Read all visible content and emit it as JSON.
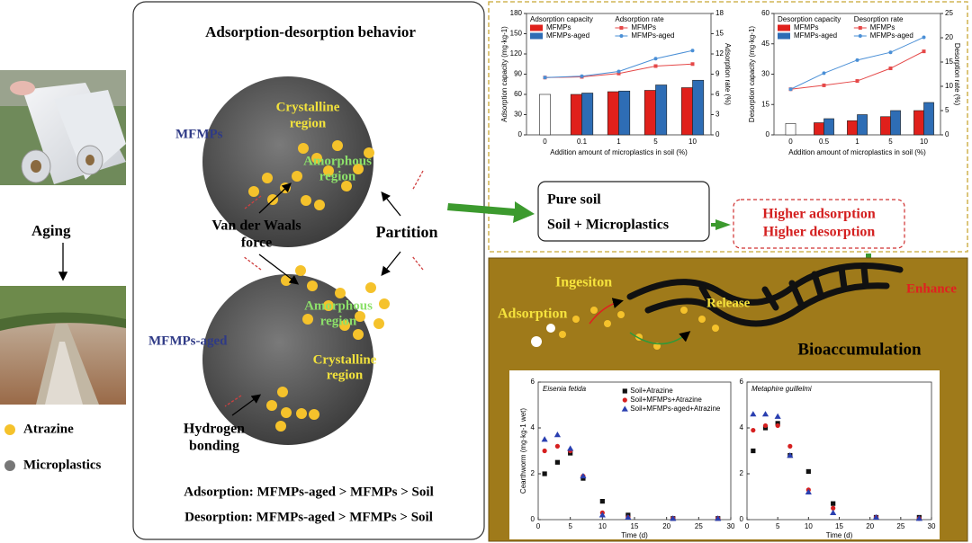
{
  "left": {
    "aging": "Aging",
    "legend": [
      "Atrazine",
      "Microplastics"
    ]
  },
  "center": {
    "title": "Adsorption-desorption behavior",
    "mfmps": "MFMPs",
    "mfmps_aged": "MFMPs-aged",
    "top_crystalline": [
      "Crystalline",
      "region"
    ],
    "top_amorphous": [
      "Amorphous",
      "region"
    ],
    "bottom_amorphous": [
      "Amorphous",
      "region"
    ],
    "bottom_crystalline": [
      "Crystalline",
      "region"
    ],
    "van_der_waals": [
      "Van der Waals",
      "force"
    ],
    "partition": "Partition",
    "hydrogen_bonding": [
      "Hydrogen",
      "bonding"
    ],
    "adsorption_order": "Adsorption: MFMPs-aged > MFMPs > Soil",
    "desorption_order": "Desorption: MFMPs-aged > MFMPs > Soil"
  },
  "boxes": {
    "pure_soil": "Pure soil",
    "soil_microplastics": "Soil  + Microplastics",
    "higher": [
      "Higher adsorption",
      "Higher desorption"
    ]
  },
  "bioaccumulation": {
    "ingestion": "Ingesiton",
    "adsorption": "Adsorption",
    "release": "Release",
    "enhance": "Enhance",
    "title": "Bioaccumulation"
  },
  "charts": [
    {
      "type": "bar-line",
      "categories": [
        "0",
        "0.1",
        "1",
        "5",
        "10"
      ],
      "legend_titles": [
        "Adsorption capacity",
        "Adsorption rate"
      ],
      "xlabel": "Addition amount of microplastics in soil (%)",
      "ylabel": "Adsorption capacity (mg·kg-1)",
      "y2label": "Adsorption rate (%)",
      "ylim": [
        0,
        180
      ],
      "yticks": [
        0,
        30,
        60,
        90,
        120,
        150,
        180
      ],
      "y2lim": [
        0,
        18
      ],
      "y2ticks": [
        0,
        3,
        6,
        9,
        12,
        15,
        18
      ],
      "series": [
        {
          "color": "#ffffff",
          "values": [
            60,
            null,
            null,
            null,
            null
          ]
        },
        {
          "name": "MFMPs",
          "color": "#e0201b",
          "values": [
            null,
            60,
            64,
            66,
            70
          ]
        },
        {
          "name": "MFMPs-aged",
          "color": "#2e6db5",
          "values": [
            null,
            62,
            65,
            74,
            81
          ]
        },
        {
          "name": "MFMPs",
          "color": "#e54848",
          "axis": "y2",
          "values": [
            8.5,
            8.6,
            9.1,
            10.2,
            10.5
          ]
        },
        {
          "name": "MFMPs-aged",
          "color": "#4a8fd6",
          "axis": "y2",
          "values": [
            8.5,
            8.7,
            9.4,
            11.3,
            12.5
          ]
        }
      ]
    },
    {
      "type": "bar-line",
      "categories": [
        "0",
        "0.5",
        "1",
        "5",
        "10"
      ],
      "legend_titles": [
        "Desorption capacity",
        "Desorption rate"
      ],
      "xlabel": "Addition amount of microplastics in soil (%)",
      "ylabel": "Desorption capacity (mg·kg-1)",
      "y2label": "Desorption rate (%)",
      "ylim": [
        0,
        60
      ],
      "yticks": [
        0,
        15,
        30,
        45,
        60
      ],
      "y2lim": [
        0,
        25
      ],
      "y2ticks": [
        0,
        5,
        10,
        15,
        20,
        25
      ],
      "series": [
        {
          "color": "#ffffff",
          "values": [
            5.6,
            null,
            null,
            null,
            null
          ]
        },
        {
          "name": "MFMPs",
          "color": "#e0201b",
          "values": [
            null,
            6,
            7,
            9,
            12
          ]
        },
        {
          "name": "MFMPs-aged",
          "color": "#2e6db5",
          "values": [
            null,
            8,
            10,
            12,
            16
          ]
        },
        {
          "name": "MFMPs",
          "color": "#e54848",
          "axis": "y2",
          "values": [
            9.4,
            10.2,
            11.1,
            13.7,
            17.2
          ]
        },
        {
          "name": "MFMPs-aged",
          "color": "#4a8fd6",
          "axis": "y2",
          "values": [
            9.4,
            12.7,
            15.4,
            17,
            20.1
          ]
        }
      ]
    },
    {
      "type": "scatter",
      "title": "Eisenia fetida",
      "xlabel": "Time (d)",
      "ylabel": "Cearthworm (mg·kg-1 wet)",
      "x": [
        1,
        3,
        5,
        7,
        10,
        14,
        21,
        28
      ],
      "xlim": [
        0,
        30
      ],
      "xticks": [
        0,
        5,
        10,
        15,
        20,
        25,
        30
      ],
      "ylim": [
        0,
        6
      ],
      "yticks": [
        0,
        2,
        4,
        6
      ],
      "series": [
        {
          "name": "Soil+Atrazine",
          "color": "#111111",
          "marker": "square",
          "values": [
            2.0,
            2.5,
            2.9,
            1.8,
            0.8,
            0.2,
            0.05,
            0.05
          ]
        },
        {
          "name": "Soil+MFMPs+Atrazine",
          "color": "#d62020",
          "marker": "circle",
          "values": [
            3.0,
            3.2,
            3.0,
            1.9,
            0.3,
            0.1,
            0.05,
            0.05
          ]
        },
        {
          "name": "Soil+MFMPs-aged+Atrazine",
          "color": "#2a3fb0",
          "marker": "triangle",
          "values": [
            3.5,
            3.7,
            3.1,
            1.9,
            0.2,
            0.1,
            0.05,
            0.05
          ]
        }
      ]
    },
    {
      "type": "scatter",
      "title": "Metaphire guillelmi",
      "xlabel": "Time (d)",
      "x": [
        1,
        3,
        5,
        7,
        10,
        14,
        21,
        28
      ],
      "xlim": [
        0,
        30
      ],
      "xticks": [
        0,
        5,
        10,
        15,
        20,
        25,
        30
      ],
      "ylim": [
        0,
        6
      ],
      "yticks": [
        0,
        2,
        4,
        6
      ],
      "series": [
        {
          "color": "#111111",
          "marker": "square",
          "values": [
            3.0,
            4.0,
            4.2,
            2.8,
            2.1,
            0.7,
            0.1,
            0.1
          ]
        },
        {
          "color": "#d62020",
          "marker": "circle",
          "values": [
            3.9,
            4.1,
            4.1,
            3.2,
            1.3,
            0.5,
            0.1,
            0.05
          ]
        },
        {
          "color": "#2a3fb0",
          "marker": "triangle",
          "values": [
            4.6,
            4.6,
            4.5,
            2.8,
            1.2,
            0.3,
            0.1,
            0.05
          ]
        }
      ]
    }
  ]
}
